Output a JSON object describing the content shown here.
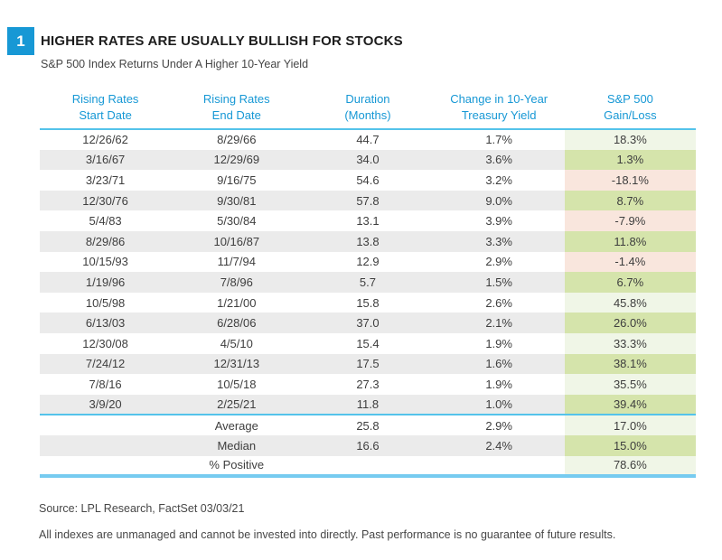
{
  "figure": {
    "number": "1",
    "title": "HIGHER RATES ARE USUALLY BULLISH FOR STOCKS",
    "subtitle": "S&P 500 Index Returns Under A Higher 10-Year Yield"
  },
  "chart_data": {
    "type": "table",
    "columns": [
      "Rising Rates\nStart Date",
      "Rising Rates\nEnd Date",
      "Duration\n(Months)",
      "Change in 10-Year\nTreasury Yield",
      "S&P 500\nGain/Loss"
    ],
    "rows": [
      [
        "12/26/62",
        "8/29/66",
        "44.7",
        "1.7%",
        "18.3%"
      ],
      [
        "3/16/67",
        "12/29/69",
        "34.0",
        "3.6%",
        "1.3%"
      ],
      [
        "3/23/71",
        "9/16/75",
        "54.6",
        "3.2%",
        "-18.1%"
      ],
      [
        "12/30/76",
        "9/30/81",
        "57.8",
        "9.0%",
        "8.7%"
      ],
      [
        "5/4/83",
        "5/30/84",
        "13.1",
        "3.9%",
        "-7.9%"
      ],
      [
        "8/29/86",
        "10/16/87",
        "13.8",
        "3.3%",
        "11.8%"
      ],
      [
        "10/15/93",
        "11/7/94",
        "12.9",
        "2.9%",
        "-1.4%"
      ],
      [
        "1/19/96",
        "7/8/96",
        "5.7",
        "1.5%",
        "6.7%"
      ],
      [
        "10/5/98",
        "1/21/00",
        "15.8",
        "2.6%",
        "45.8%"
      ],
      [
        "6/13/03",
        "6/28/06",
        "37.0",
        "2.1%",
        "26.0%"
      ],
      [
        "12/30/08",
        "4/5/10",
        "15.4",
        "1.9%",
        "33.3%"
      ],
      [
        "7/24/12",
        "12/31/13",
        "17.5",
        "1.6%",
        "38.1%"
      ],
      [
        "7/8/16",
        "10/5/18",
        "27.3",
        "1.9%",
        "35.5%"
      ],
      [
        "3/9/20",
        "2/25/21",
        "11.8",
        "1.0%",
        "39.4%"
      ]
    ],
    "summary_rows": [
      [
        "",
        "Average",
        "25.8",
        "2.9%",
        "17.0%"
      ],
      [
        "",
        "Median",
        "16.6",
        "2.4%",
        "15.0%"
      ],
      [
        "",
        "% Positive",
        "",
        "",
        "78.6%"
      ]
    ]
  },
  "colors": {
    "accent_blue": "#1798d5",
    "line_cyan": "#54c3ea",
    "line_cyan_thick": "#76cbf0",
    "row_gray": "#ebebeb",
    "positive_on_white": "#f0f6e7",
    "positive_on_gray": "#d5e4ab",
    "negative_on_white": "#f9e6dd",
    "negative_on_gray": "#f6e0d5"
  },
  "footer": {
    "source": "Source: LPL Research, FactSet 03/03/21",
    "disclaimer": "All indexes are unmanaged and cannot be invested into directly. Past performance is no guarantee of future results."
  }
}
